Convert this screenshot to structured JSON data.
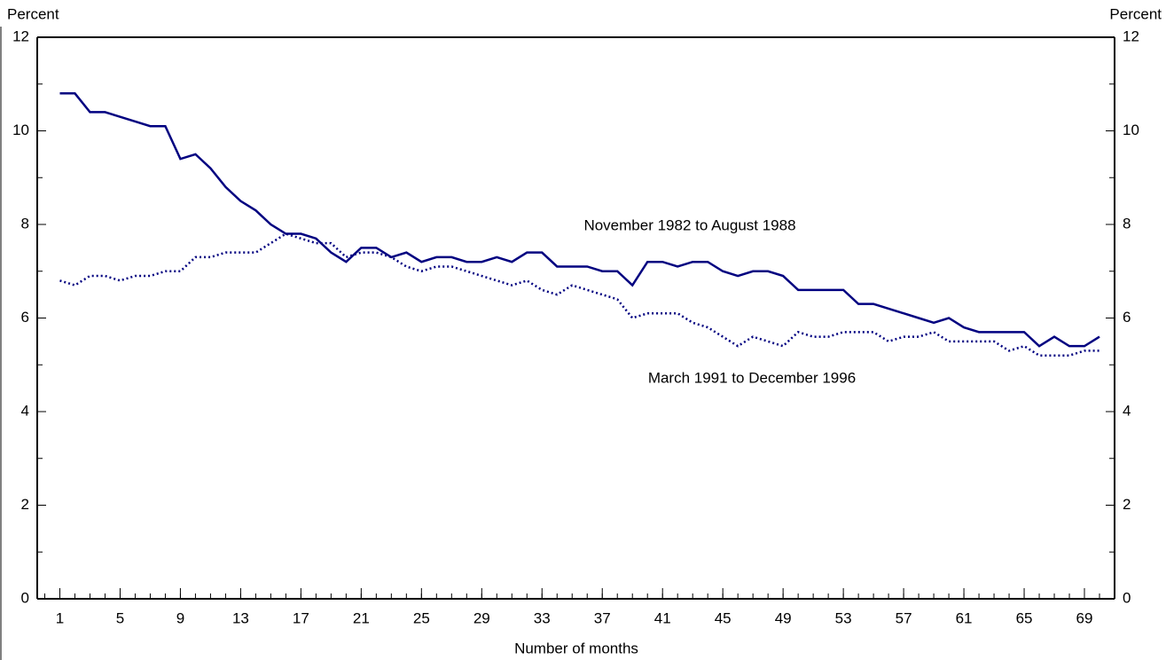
{
  "chart_data": {
    "type": "line",
    "y_label": "Percent",
    "y2_label": "Percent",
    "x_label": "Number of months",
    "x": [
      1,
      2,
      3,
      4,
      5,
      6,
      7,
      8,
      9,
      10,
      11,
      12,
      13,
      14,
      15,
      16,
      17,
      18,
      19,
      20,
      21,
      22,
      23,
      24,
      25,
      26,
      27,
      28,
      29,
      30,
      31,
      32,
      33,
      34,
      35,
      36,
      37,
      38,
      39,
      40,
      41,
      42,
      43,
      44,
      45,
      46,
      47,
      48,
      49,
      50,
      51,
      52,
      53,
      54,
      55,
      56,
      57,
      58,
      59,
      60,
      61,
      62,
      63,
      64,
      65,
      66,
      67,
      68,
      69,
      70
    ],
    "series": [
      {
        "name": "November 1982 to August 1988",
        "color": "#000080",
        "style": "solid",
        "values": [
          10.8,
          10.8,
          10.4,
          10.4,
          10.3,
          10.2,
          10.1,
          10.1,
          9.4,
          9.5,
          9.2,
          8.8,
          8.5,
          8.3,
          8.0,
          7.8,
          7.8,
          7.7,
          7.4,
          7.2,
          7.5,
          7.5,
          7.3,
          7.4,
          7.2,
          7.3,
          7.3,
          7.2,
          7.2,
          7.3,
          7.2,
          7.4,
          7.4,
          7.1,
          7.1,
          7.1,
          7.0,
          7.0,
          6.7,
          7.2,
          7.2,
          7.1,
          7.2,
          7.2,
          7.0,
          6.9,
          7.0,
          7.0,
          6.9,
          6.6,
          6.6,
          6.6,
          6.6,
          6.3,
          6.3,
          6.2,
          6.1,
          6.0,
          5.9,
          6.0,
          5.8,
          5.7,
          5.7,
          5.7,
          5.7,
          5.4,
          5.6,
          5.4,
          5.4,
          5.6
        ]
      },
      {
        "name": "March 1991 to December 1996",
        "color": "#000080",
        "style": "dotted",
        "values": [
          6.8,
          6.7,
          6.9,
          6.9,
          6.8,
          6.9,
          6.9,
          7.0,
          7.0,
          7.3,
          7.3,
          7.4,
          7.4,
          7.4,
          7.6,
          7.8,
          7.7,
          7.6,
          7.6,
          7.3,
          7.4,
          7.4,
          7.3,
          7.1,
          7.0,
          7.1,
          7.1,
          7.0,
          6.9,
          6.8,
          6.7,
          6.8,
          6.6,
          6.5,
          6.7,
          6.6,
          6.5,
          6.4,
          6.0,
          6.1,
          6.1,
          6.1,
          5.9,
          5.8,
          5.6,
          5.4,
          5.6,
          5.5,
          5.4,
          5.7,
          5.6,
          5.6,
          5.7,
          5.7,
          5.7,
          5.5,
          5.6,
          5.6,
          5.7,
          5.5,
          5.5,
          5.5,
          5.5,
          5.3,
          5.4,
          5.2,
          5.2,
          5.2,
          5.3,
          5.3
        ]
      }
    ],
    "xlim": [
      -0.5,
      71
    ],
    "xticks": [
      1,
      5,
      9,
      13,
      17,
      21,
      25,
      29,
      33,
      37,
      41,
      45,
      49,
      53,
      57,
      61,
      65,
      69
    ],
    "x_minor_step": 1,
    "ylim": [
      0,
      12
    ],
    "yticks": [
      0,
      2,
      4,
      6,
      8,
      10,
      12
    ],
    "y_minor_step": 1,
    "y2lim": [
      0,
      12
    ],
    "y2ticks": [
      0,
      2,
      4,
      6,
      8,
      10,
      12
    ],
    "grid": false
  }
}
